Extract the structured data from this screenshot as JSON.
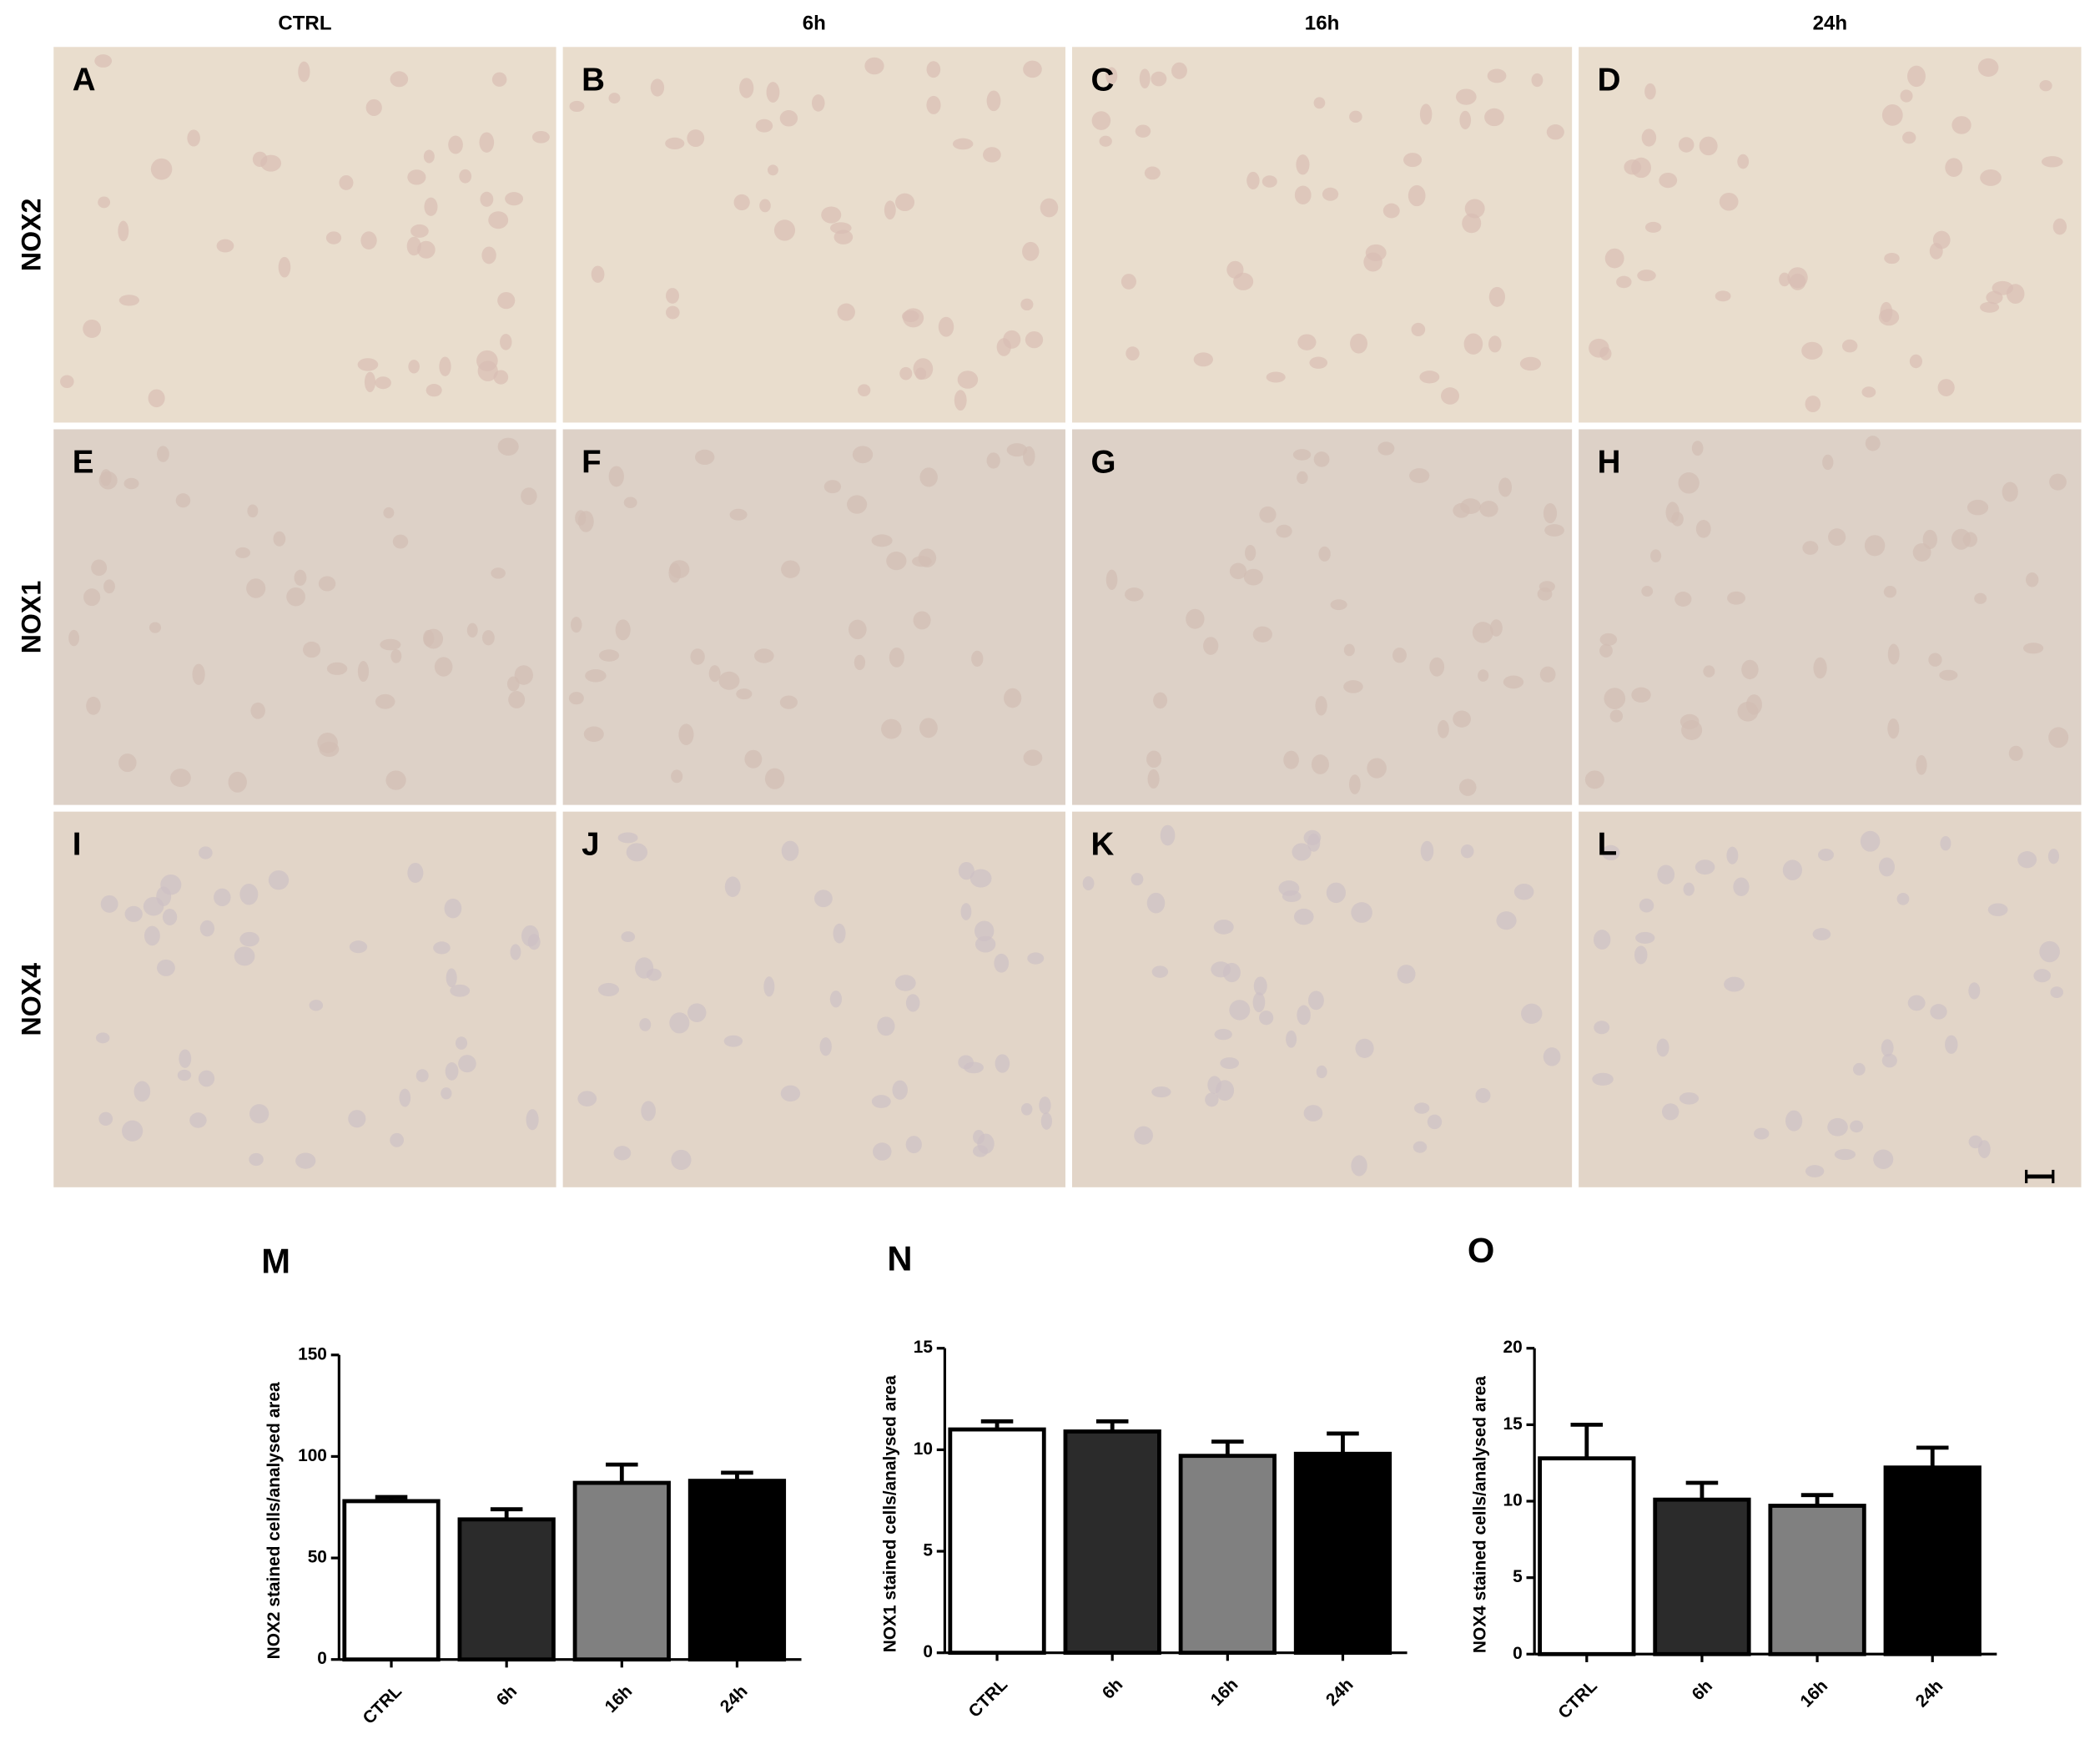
{
  "figure": {
    "columns": [
      "CTRL",
      "6h",
      "16h",
      "24h"
    ],
    "rows": [
      "NOX2",
      "NOX1",
      "NOX4"
    ],
    "panels": [
      "A",
      "B",
      "C",
      "D",
      "E",
      "F",
      "G",
      "H",
      "I",
      "J",
      "K",
      "L"
    ]
  },
  "chart_data": [
    {
      "type": "bar",
      "panel_label": "M",
      "y_label": "NOX2 stained cells/analysed area",
      "categories": [
        "CTRL",
        "6h",
        "16h",
        "24h"
      ],
      "values": [
        78,
        69,
        87,
        88
      ],
      "errors": [
        2,
        5,
        9,
        4
      ],
      "colors": [
        "#ffffff",
        "#2b2b2b",
        "#808080",
        "#000000"
      ],
      "ylim": [
        0,
        150
      ],
      "yticks": [
        0,
        50,
        100,
        150
      ]
    },
    {
      "type": "bar",
      "panel_label": "N",
      "y_label": "NOX1 stained cells/analysed area",
      "categories": [
        "CTRL",
        "6h",
        "16h",
        "24h"
      ],
      "values": [
        11.0,
        10.9,
        9.7,
        9.8
      ],
      "errors": [
        0.4,
        0.5,
        0.7,
        1.0
      ],
      "colors": [
        "#ffffff",
        "#2b2b2b",
        "#808080",
        "#000000"
      ],
      "ylim": [
        0,
        15
      ],
      "yticks": [
        0,
        5,
        10,
        15
      ]
    },
    {
      "type": "bar",
      "panel_label": "O",
      "y_label": "NOX4 stained cells/analysed area",
      "categories": [
        "CTRL",
        "6h",
        "16h",
        "24h"
      ],
      "values": [
        12.8,
        10.1,
        9.7,
        12.2
      ],
      "errors": [
        2.2,
        1.1,
        0.7,
        1.3
      ],
      "colors": [
        "#ffffff",
        "#2b2b2b",
        "#808080",
        "#000000"
      ],
      "ylim": [
        0,
        20
      ],
      "yticks": [
        0,
        5,
        10,
        15,
        20
      ]
    }
  ]
}
